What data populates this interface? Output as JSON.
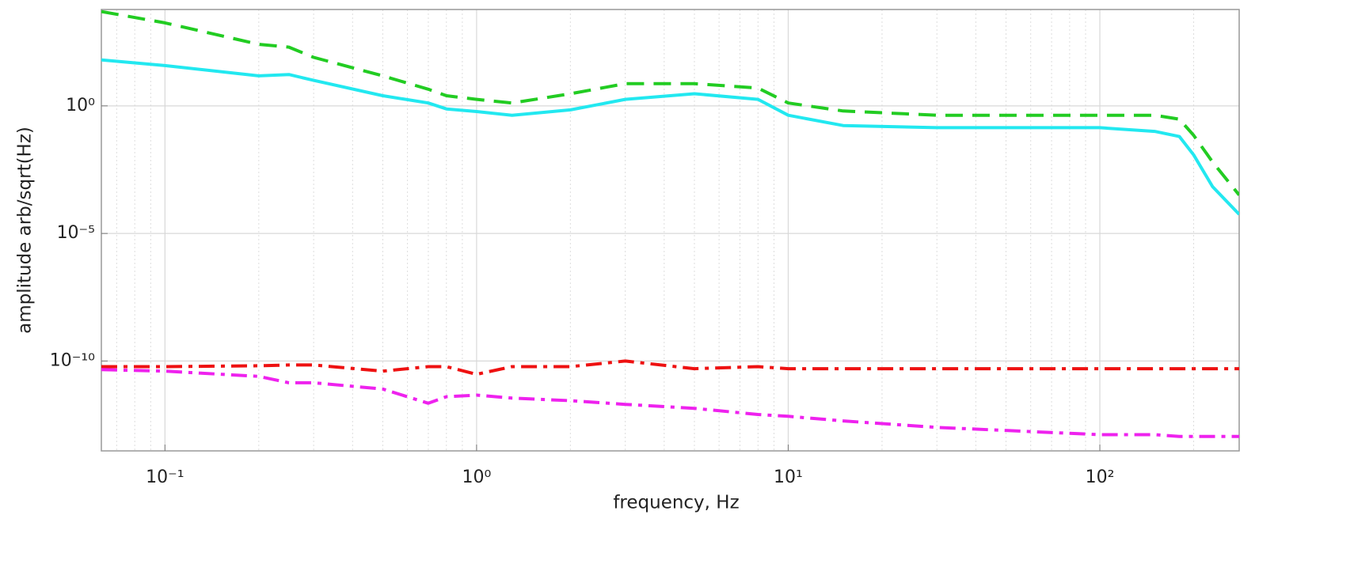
{
  "chart_data": {
    "type": "line",
    "x_label": "frequency, Hz",
    "y_label": "amplitude arb/sqrt(Hz)",
    "log_x": true,
    "log_y": true,
    "grid": true,
    "minor_grid": true,
    "xlim": [
      0.0625,
      280
    ],
    "ylim": [
      3e-14,
      6000
    ],
    "xticks": [
      {
        "value": 0.1,
        "label": "10⁻¹"
      },
      {
        "value": 1,
        "label": "10⁰"
      },
      {
        "value": 10,
        "label": "10¹"
      },
      {
        "value": 100,
        "label": "10²"
      }
    ],
    "yticks": [
      {
        "value": 1e-10,
        "label": "10⁻¹⁰"
      },
      {
        "value": 1e-05,
        "label": "10⁻⁵"
      },
      {
        "value": 1,
        "label": "10⁰"
      }
    ],
    "x": [
      0.0625,
      0.1,
      0.2,
      0.25,
      0.3,
      0.5,
      0.7,
      0.8,
      1,
      1.3,
      2,
      3,
      5,
      8,
      10,
      15,
      30,
      100,
      150,
      180,
      200,
      230,
      280
    ],
    "series": [
      {
        "color": "#22cc22",
        "style": "dashed",
        "values": [
          5000,
          1800,
          260,
          200,
          80,
          15,
          4.5,
          2.5,
          1.8,
          1.3,
          3,
          7.4,
          7.4,
          5,
          1.3,
          0.63,
          0.43,
          0.43,
          0.43,
          0.3,
          0.07,
          0.0063,
          0.00032
        ]
      },
      {
        "color": "#22e8f0",
        "style": "solid",
        "values": [
          63,
          38,
          15,
          17,
          10,
          2.5,
          1.3,
          0.76,
          0.6,
          0.43,
          0.7,
          1.8,
          3,
          1.8,
          0.43,
          0.17,
          0.14,
          0.14,
          0.1,
          0.063,
          0.012,
          0.00068,
          5.6e-05
        ]
      },
      {
        "color": "#ee1111",
        "style": "dashdot",
        "values": [
          6e-11,
          6e-11,
          6.5e-11,
          7e-11,
          7e-11,
          4e-11,
          6e-11,
          6e-11,
          3e-11,
          6e-11,
          6e-11,
          1e-10,
          5e-11,
          6e-11,
          5e-11,
          5e-11,
          5e-11,
          5e-11,
          5e-11,
          5e-11,
          5e-11,
          5e-11,
          5e-11
        ]
      },
      {
        "color": "#ee22ee",
        "style": "dashdot",
        "values": [
          4.6e-11,
          4e-11,
          2.5e-11,
          1.4e-11,
          1.4e-11,
          8e-12,
          2.2e-12,
          4e-12,
          4.6e-12,
          3.5e-12,
          2.8e-12,
          2e-12,
          1.4e-12,
          8e-13,
          6.8e-13,
          4.5e-13,
          2.5e-13,
          1.3e-13,
          1.3e-13,
          1.1e-13,
          1.1e-13,
          1.1e-13,
          1.1e-13
        ]
      }
    ]
  }
}
